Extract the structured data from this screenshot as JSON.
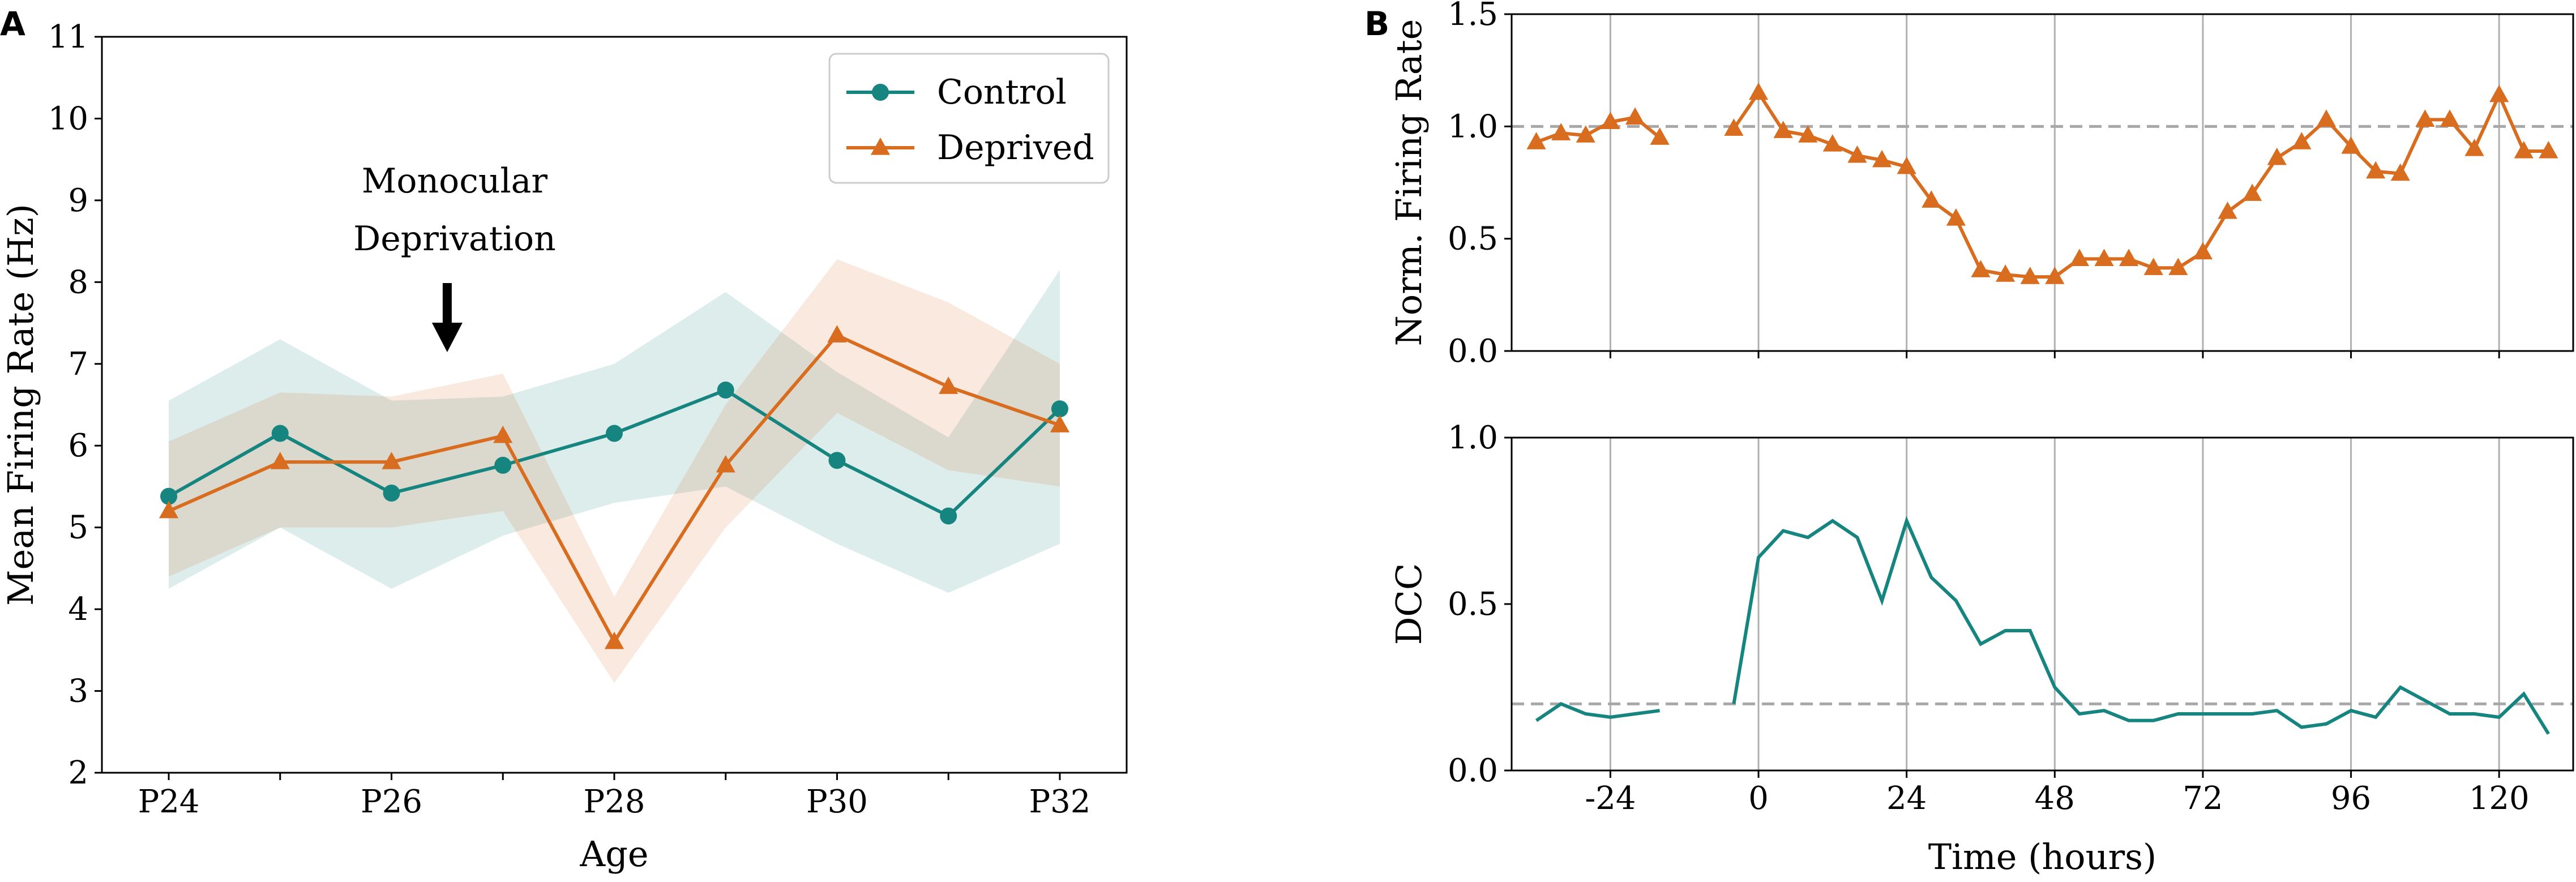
{
  "chart_data": [
    {
      "panel": "A",
      "type": "line",
      "title": "",
      "xlabel": "Age",
      "ylabel": "Mean Firing Rate (Hz)",
      "ylim": [
        2,
        11
      ],
      "yticks": [
        2,
        3,
        4,
        5,
        6,
        7,
        8,
        9,
        10,
        11
      ],
      "xtick_labels": [
        "P24",
        "P26",
        "P28",
        "P30",
        "P32"
      ],
      "xtick_values": [
        24,
        26,
        28,
        30,
        32
      ],
      "x": [
        24,
        25,
        26,
        27,
        28,
        29,
        30,
        31,
        32
      ],
      "annotation": [
        "Monocular",
        "Deprivation"
      ],
      "annotation_at_x": 26.5,
      "legend_position": "top-right",
      "series": [
        {
          "name": "Control",
          "color": "#17857f",
          "marker": "circle",
          "values": [
            5.38,
            6.15,
            5.42,
            5.76,
            6.15,
            6.68,
            5.82,
            5.14,
            6.45
          ],
          "ci_lower": [
            4.25,
            5.0,
            4.25,
            4.9,
            5.3,
            5.5,
            4.8,
            4.2,
            4.8
          ],
          "ci_upper": [
            6.55,
            7.3,
            6.55,
            6.6,
            7.0,
            7.88,
            6.9,
            6.1,
            8.15
          ]
        },
        {
          "name": "Deprived",
          "color": "#d86c1f",
          "marker": "triangle",
          "values": [
            5.2,
            5.8,
            5.8,
            6.12,
            3.6,
            5.76,
            7.35,
            6.72,
            6.25
          ],
          "ci_lower": [
            4.4,
            5.0,
            5.0,
            5.2,
            3.1,
            5.0,
            6.4,
            5.7,
            5.5
          ],
          "ci_upper": [
            6.05,
            6.65,
            6.6,
            6.88,
            4.15,
            6.5,
            8.28,
            7.75,
            7.0
          ]
        }
      ]
    },
    {
      "panel": "B",
      "type": "line",
      "subplot": "top",
      "ylabel": "Norm. Firing Rate",
      "ylim": [
        0,
        1.5
      ],
      "yticks": [
        "0.0",
        "0.5",
        "1.0",
        "1.5"
      ],
      "xlim": [
        -40,
        132
      ],
      "xticks": [
        -24,
        0,
        24,
        48,
        72,
        96,
        120
      ],
      "reference_line": 1.0,
      "series": [
        {
          "name": "Norm. Firing Rate",
          "color": "#d86c1f",
          "marker": "triangle",
          "segments": [
            {
              "x": [
                -36,
                -32,
                -28,
                -24,
                -20,
                -16
              ],
              "y": [
                0.93,
                0.97,
                0.96,
                1.02,
                1.04,
                0.95
              ]
            },
            {
              "x": [
                -4,
                0,
                4,
                8,
                12,
                16,
                20,
                24,
                28,
                32,
                36,
                40,
                44,
                48,
                52,
                56,
                60,
                64,
                68,
                72,
                76,
                80,
                84,
                88,
                92,
                96,
                100,
                104,
                108,
                112,
                116,
                120,
                124,
                128
              ],
              "y": [
                0.99,
                1.15,
                0.98,
                0.96,
                0.92,
                0.87,
                0.85,
                0.82,
                0.67,
                0.59,
                0.36,
                0.34,
                0.33,
                0.33,
                0.41,
                0.41,
                0.41,
                0.37,
                0.37,
                0.44,
                0.62,
                0.7,
                0.86,
                0.93,
                1.03,
                0.91,
                0.8,
                0.79,
                1.03,
                1.03,
                0.9,
                1.14,
                0.89,
                0.89
              ]
            }
          ]
        }
      ]
    },
    {
      "panel": "B",
      "type": "line",
      "subplot": "bottom",
      "ylabel": "DCC",
      "xlabel": "Time (hours)",
      "ylim": [
        0,
        1.0
      ],
      "yticks": [
        "0.0",
        "0.5",
        "1.0"
      ],
      "xlim": [
        -40,
        132
      ],
      "xticks": [
        -24,
        0,
        24,
        48,
        72,
        96,
        120
      ],
      "reference_line": 0.2,
      "series": [
        {
          "name": "DCC",
          "color": "#17857f",
          "marker": "none",
          "segments": [
            {
              "x": [
                -36,
                -32,
                -28,
                -24,
                -20,
                -16
              ],
              "y": [
                0.15,
                0.2,
                0.17,
                0.16,
                0.17,
                0.18
              ]
            },
            {
              "x": [
                -4,
                0,
                4,
                8,
                12,
                16,
                20,
                24,
                28,
                32,
                36,
                40,
                44,
                48,
                52,
                56,
                60,
                64,
                68,
                72,
                76,
                80,
                84,
                88,
                92,
                96,
                100,
                104,
                108,
                112,
                116,
                120,
                124,
                128
              ],
              "y": [
                0.2,
                0.64,
                0.72,
                0.7,
                0.75,
                0.7,
                0.51,
                0.75,
                0.58,
                0.51,
                0.38,
                0.42,
                0.42,
                0.25,
                0.17,
                0.18,
                0.15,
                0.15,
                0.17,
                0.17,
                0.17,
                0.17,
                0.18,
                0.13,
                0.14,
                0.18,
                0.16,
                0.25,
                0.21,
                0.17,
                0.17,
                0.16,
                0.23,
                0.11
              ]
            }
          ]
        }
      ]
    }
  ]
}
